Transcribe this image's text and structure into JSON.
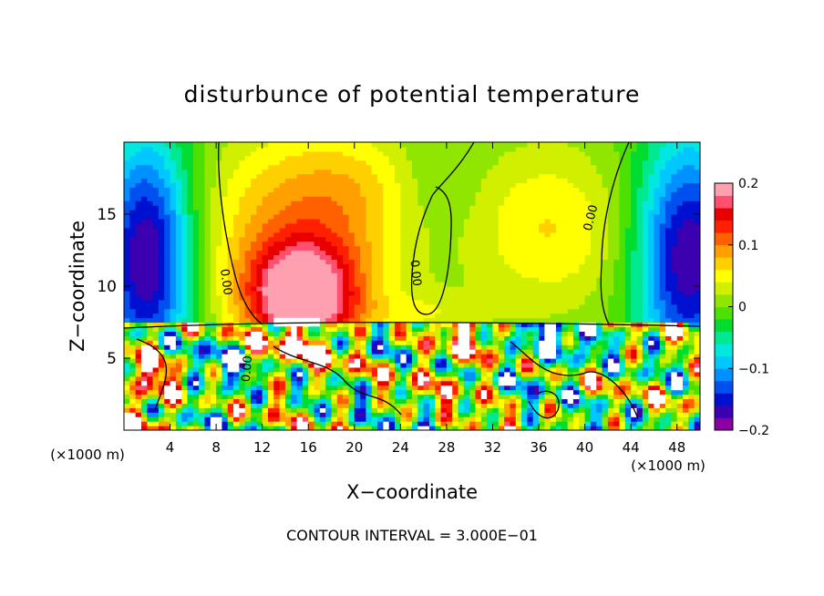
{
  "chart_data": {
    "type": "heatmap",
    "title": "disturbunce of potential temperature",
    "xlabel": "X−coordinate",
    "ylabel": "Z−coordinate",
    "x_unit": "(×1000 m)",
    "x_unit_right": "(×1000 m)",
    "xlim": [
      0,
      50
    ],
    "ylim": [
      0,
      20
    ],
    "x_ticks": [
      "4",
      "8",
      "12",
      "16",
      "20",
      "24",
      "28",
      "32",
      "36",
      "40",
      "44",
      "48"
    ],
    "y_ticks": [
      "5",
      "10",
      "15"
    ],
    "colorbar": {
      "vmin": -0.2,
      "vmax": 0.2,
      "ticks": [
        "0.2",
        "0.1",
        "0",
        "−0.1",
        "−0.2"
      ],
      "colors": [
        "#8a00a0",
        "#3b00b0",
        "#0010d0",
        "#0050f0",
        "#0090ff",
        "#00c8ff",
        "#00e8e0",
        "#00e890",
        "#00dd30",
        "#4de000",
        "#90e600",
        "#d0f000",
        "#ffff00",
        "#ffd000",
        "#ffa000",
        "#ff6000",
        "#ff2000",
        "#e80000",
        "#ff5070",
        "#ffa0b0"
      ]
    },
    "contour_labels": [
      "0.00",
      "0.00",
      "0.00",
      "0.00"
    ],
    "annotation": "CONTOUR INTERVAL = 3.000E−01",
    "grid": false,
    "legend": "colorbar-right"
  }
}
